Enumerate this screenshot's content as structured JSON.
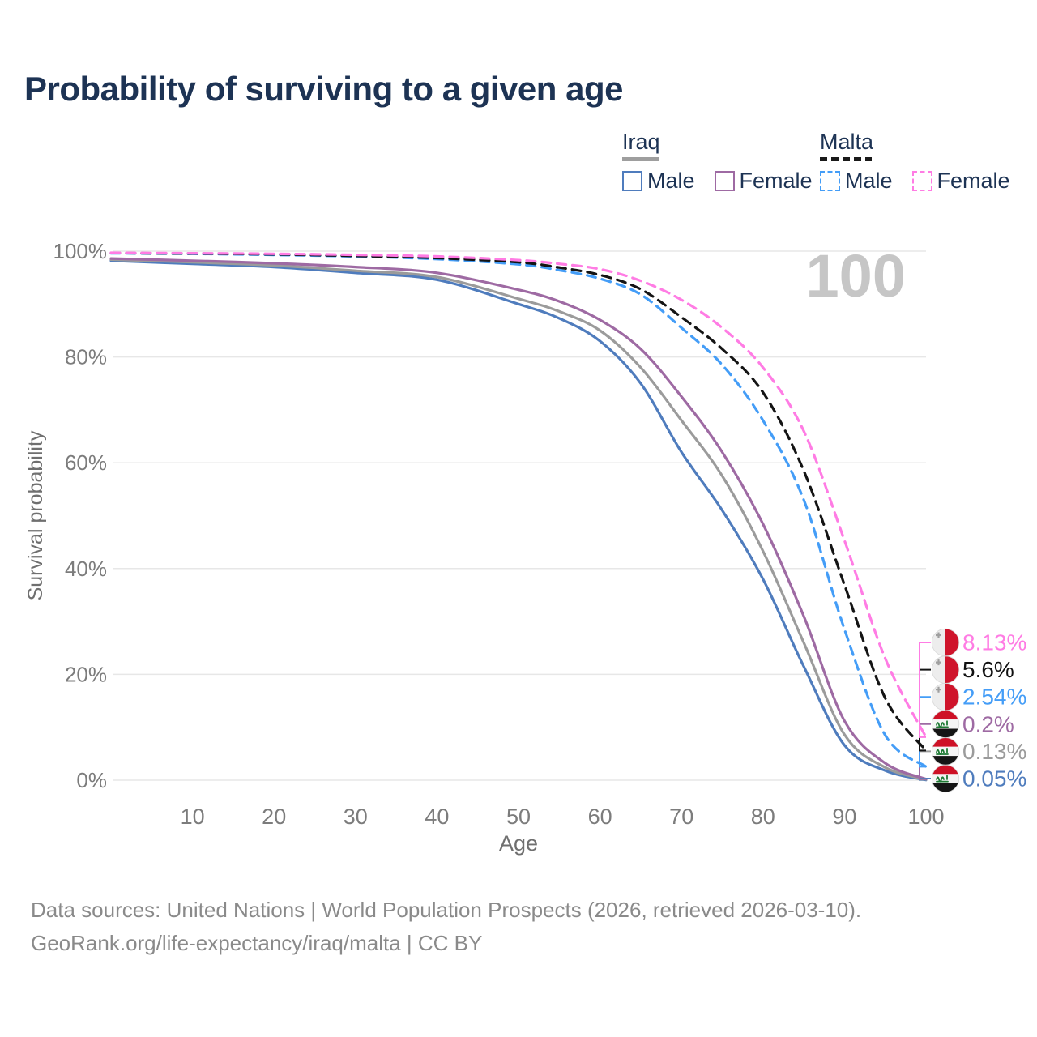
{
  "title": "Probability of surviving to a given age",
  "watermark": "100",
  "colors": {
    "title_text": "#1d3354",
    "axis_text": "#7c7c7c",
    "axis_title_text": "#6f6f6f",
    "gridline": "#e7e7e7",
    "watermark": "#c6c6c6",
    "footer_text": "#8a8a8a",
    "iraq_male": "#4f7cbd",
    "iraq_both": "#9b9b9b",
    "iraq_female": "#9e6aa3",
    "malta_male": "#449df7",
    "malta_both": "#141414",
    "malta_female": "#ff7ce4",
    "iraq_underline": "#9e9e9e",
    "malta_underline": "#1a1a1a"
  },
  "legend": {
    "groups": [
      {
        "label": "Iraq",
        "dashed": false,
        "underline_color": "#9e9e9e",
        "items": [
          {
            "label": "Male",
            "color": "#4f7cbd",
            "dashed": false
          },
          {
            "label": "Female",
            "color": "#9e6aa3",
            "dashed": false
          }
        ]
      },
      {
        "label": "Malta",
        "dashed": true,
        "underline_color": "#1a1a1a",
        "items": [
          {
            "label": "Male",
            "color": "#449df7",
            "dashed": true
          },
          {
            "label": "Female",
            "color": "#ff7ce4",
            "dashed": true
          }
        ]
      }
    ]
  },
  "chart_data": {
    "type": "line",
    "title": "Probability of surviving to a given age",
    "xlabel": "Age",
    "ylabel": "Survival probability",
    "xlim": [
      0,
      100
    ],
    "ylim": [
      0,
      100
    ],
    "grid": "horizontal",
    "legend_position": "top-right",
    "x_ticks": [
      10,
      20,
      30,
      40,
      50,
      60,
      70,
      80,
      90,
      100
    ],
    "y_tick_values": [
      0,
      20,
      40,
      60,
      80,
      100
    ],
    "y_tick_labels": [
      "0%",
      "20%",
      "40%",
      "60%",
      "80%",
      "100%"
    ],
    "x": [
      0,
      10,
      20,
      30,
      40,
      50,
      55,
      60,
      65,
      70,
      75,
      80,
      85,
      90,
      95,
      100
    ],
    "series": [
      {
        "id": "iraq-male",
        "name": "Iraq Male",
        "color": "#4f7cbd",
        "dashed": false,
        "values": [
          98.2,
          97.6,
          97.0,
          95.9,
          94.6,
          90.0,
          87.3,
          83.0,
          75.0,
          62.0,
          51.0,
          38.0,
          21.5,
          6.6,
          1.8,
          0.05
        ],
        "end_label": "0.05%",
        "end_label_color": "#4f7cbd",
        "flag": "iraq",
        "label_row": 5
      },
      {
        "id": "iraq-both",
        "name": "Iraq Both sexes",
        "color": "#9b9b9b",
        "dashed": false,
        "values": [
          98.4,
          97.9,
          97.3,
          96.3,
          95.1,
          91.0,
          88.6,
          85.0,
          78.0,
          68.0,
          57.5,
          43.3,
          26.0,
          8.6,
          2.4,
          0.13
        ],
        "end_label": "0.13%",
        "end_label_color": "#9b9b9b",
        "flag": "iraq",
        "label_row": 4
      },
      {
        "id": "iraq-female",
        "name": "Iraq Female",
        "color": "#9e6aa3",
        "dashed": false,
        "values": [
          98.6,
          98.2,
          97.7,
          97.0,
          95.9,
          92.7,
          90.5,
          87.0,
          81.5,
          72.5,
          62.0,
          48.4,
          31.0,
          11.2,
          3.2,
          0.2
        ],
        "end_label": "0.2%",
        "end_label_color": "#9e6aa3",
        "flag": "iraq",
        "label_row": 3
      },
      {
        "id": "malta-male",
        "name": "Malta Male",
        "color": "#449df7",
        "dashed": true,
        "values": [
          99.6,
          99.5,
          99.3,
          99.0,
          98.5,
          97.5,
          96.4,
          94.8,
          91.8,
          85.5,
          78.5,
          68.0,
          53.0,
          28.5,
          8.5,
          2.54
        ],
        "end_label": "2.54%",
        "end_label_color": "#449df7",
        "flag": "malta",
        "label_row": 2
      },
      {
        "id": "malta-both",
        "name": "Malta Both sexes",
        "color": "#141414",
        "dashed": true,
        "values": [
          99.65,
          99.55,
          99.4,
          99.1,
          98.7,
          97.9,
          96.9,
          95.5,
          92.8,
          87.5,
          81.5,
          73.3,
          58.5,
          36.9,
          15.5,
          5.6
        ],
        "end_label": "5.6%",
        "end_label_color": "#111111",
        "flag": "malta",
        "label_row": 1
      },
      {
        "id": "malta-female",
        "name": "Malta Female",
        "color": "#ff7ce4",
        "dashed": true,
        "values": [
          99.7,
          99.6,
          99.5,
          99.3,
          99.0,
          98.3,
          97.6,
          96.6,
          94.4,
          90.8,
          85.5,
          78.0,
          66.0,
          45.3,
          23.0,
          8.13
        ],
        "end_label": "8.13%",
        "end_label_color": "#ff7ce4",
        "flag": "malta",
        "label_row": 0
      }
    ]
  },
  "footer": {
    "line1": "Data sources: United Nations | World Population Prospects (2026, retrieved 2026-03-10).",
    "line2": "GeoRank.org/life-expectancy/iraq/malta | CC BY"
  }
}
